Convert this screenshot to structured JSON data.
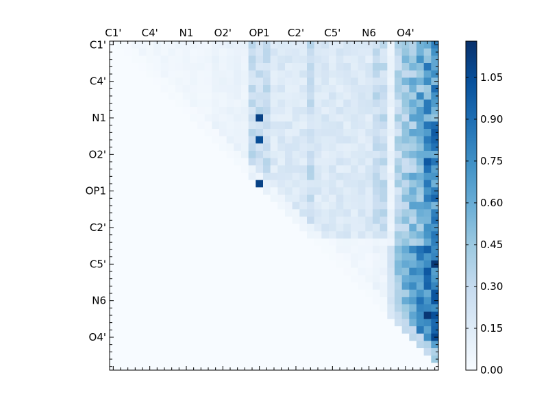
{
  "chart_data": {
    "type": "heatmap",
    "title": "",
    "xlabel": "",
    "ylabel": "",
    "n": 45,
    "x_tick_labels": [
      "C1'",
      "C4'",
      "N1",
      "O2'",
      "OP1",
      "C2'",
      "C5'",
      "N6",
      "O4'"
    ],
    "y_tick_labels": [
      "C1'",
      "C4'",
      "N1",
      "O2'",
      "OP1",
      "C2'",
      "C5'",
      "N6",
      "O4'"
    ],
    "tick_step": 5,
    "colorbar": {
      "ticks": [
        "0.00",
        "0.15",
        "0.30",
        "0.45",
        "0.60",
        "0.75",
        "0.90",
        "1.05"
      ],
      "tick_values": [
        0.0,
        0.15,
        0.3,
        0.45,
        0.6,
        0.75,
        0.9,
        1.05
      ],
      "vmin": 0.0,
      "vmax": 1.18,
      "colormap": "Blues",
      "colors": [
        "#f7fbff",
        "#deebf7",
        "#c6dbef",
        "#9ecae1",
        "#6baed6",
        "#4292c6",
        "#2171b5",
        "#08519c",
        "#08306b"
      ]
    },
    "notable_cells": [
      {
        "row": 10,
        "col": 20,
        "value": 1.1
      },
      {
        "row": 13,
        "col": 20,
        "value": 1.05
      },
      {
        "row": 19,
        "col": 20,
        "value": 1.1
      },
      {
        "row": 37,
        "col": 43,
        "value": 1.15
      },
      {
        "row": 31,
        "col": 43,
        "value": 1.0
      },
      {
        "row": 16,
        "col": 43,
        "value": 1.0
      },
      {
        "row": 33,
        "col": 43,
        "value": 0.95
      }
    ]
  }
}
